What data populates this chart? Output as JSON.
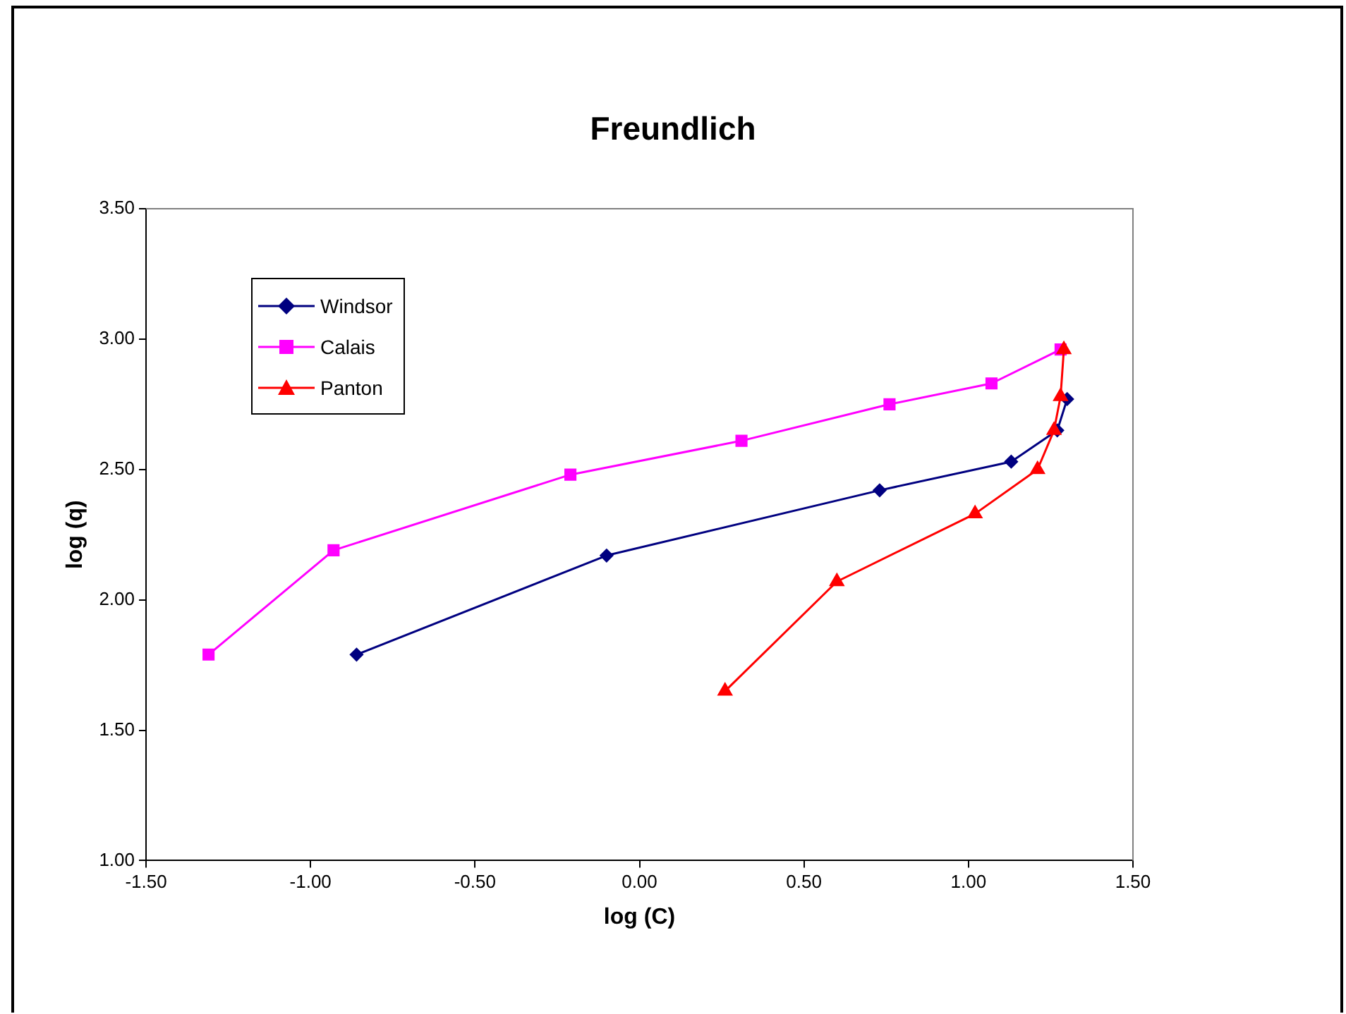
{
  "chart_data": {
    "type": "line",
    "title": "Freundlich",
    "xlabel": "log (C)",
    "ylabel": "log (q)",
    "xlim": [
      -1.5,
      1.5
    ],
    "xticks": [
      {
        "value": -1.5,
        "label": "-1.50"
      },
      {
        "value": -1,
        "label": "-1.00"
      },
      {
        "value": -0.5,
        "label": "-0.50"
      },
      {
        "value": 0,
        "label": "0.00"
      },
      {
        "value": 0.5,
        "label": "0.50"
      },
      {
        "value": 1,
        "label": "1.00"
      },
      {
        "value": 1.5,
        "label": "1.50"
      }
    ],
    "ylim": [
      1,
      3.5
    ],
    "yticks": [
      {
        "value": 1,
        "label": "1.00"
      },
      {
        "value": 1.5,
        "label": "1.50"
      },
      {
        "value": 2,
        "label": "2.00"
      },
      {
        "value": 2.5,
        "label": "2.50"
      },
      {
        "value": 3,
        "label": "3.00"
      },
      {
        "value": 3.5,
        "label": "3.50"
      }
    ],
    "grid": false,
    "legend": "top left",
    "line_style": "solid",
    "series": [
      {
        "name": "Windsor",
        "color": "#000080",
        "marker": "diamond",
        "x": [
          -0.86,
          -0.1,
          0.73,
          1.13,
          1.27,
          1.3
        ],
        "values": [
          1.79,
          2.17,
          2.42,
          2.53,
          2.65,
          2.77
        ]
      },
      {
        "name": "Calais",
        "color": "#ff00ff",
        "marker": "square",
        "x": [
          -1.31,
          -0.93,
          -0.21,
          0.31,
          0.76,
          1.07,
          1.28
        ],
        "values": [
          1.79,
          2.19,
          2.48,
          2.61,
          2.75,
          2.83,
          2.96
        ]
      },
      {
        "name": "Panton",
        "color": "#ff0000",
        "marker": "triangle",
        "x": [
          0.26,
          0.6,
          1.02,
          1.21,
          1.26,
          1.28,
          1.29
        ],
        "values": [
          1.65,
          2.07,
          2.33,
          2.5,
          2.65,
          2.78,
          2.96
        ]
      }
    ]
  }
}
